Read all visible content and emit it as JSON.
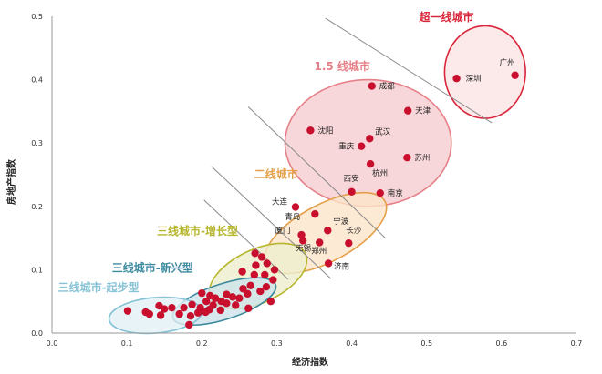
{
  "chart_data": {
    "type": "scatter",
    "xlabel": "经济指数",
    "ylabel": "房地产指数",
    "xlim": [
      0,
      0.7
    ],
    "ylim": [
      0,
      0.5
    ],
    "x_ticks": [
      "0.0",
      "0.1",
      "0.2",
      "0.3",
      "0.4",
      "0.5",
      "0.6",
      "0.7"
    ],
    "y_ticks": [
      "0.0",
      "0.1",
      "0.2",
      "0.3",
      "0.4",
      "0.5"
    ],
    "grid": false,
    "point_color": "#c8102e",
    "labeled_points": [
      {
        "label": "广州",
        "x": 0.618,
        "y": 0.407
      },
      {
        "label": "深圳",
        "x": 0.54,
        "y": 0.402
      },
      {
        "label": "成都",
        "x": 0.427,
        "y": 0.39
      },
      {
        "label": "天津",
        "x": 0.475,
        "y": 0.351
      },
      {
        "label": "沈阳",
        "x": 0.345,
        "y": 0.32
      },
      {
        "label": "武汉",
        "x": 0.424,
        "y": 0.307
      },
      {
        "label": "重庆",
        "x": 0.413,
        "y": 0.295
      },
      {
        "label": "苏州",
        "x": 0.474,
        "y": 0.277
      },
      {
        "label": "杭州",
        "x": 0.425,
        "y": 0.267
      },
      {
        "label": "西安",
        "x": 0.4,
        "y": 0.223
      },
      {
        "label": "南京",
        "x": 0.438,
        "y": 0.221
      },
      {
        "label": "大连",
        "x": 0.325,
        "y": 0.199
      },
      {
        "label": "青岛",
        "x": 0.351,
        "y": 0.188
      },
      {
        "label": "宁波",
        "x": 0.368,
        "y": 0.162
      },
      {
        "label": "厦门",
        "x": 0.333,
        "y": 0.155
      },
      {
        "label": "长沙",
        "x": 0.396,
        "y": 0.142
      },
      {
        "label": "无锡",
        "x": 0.335,
        "y": 0.146
      },
      {
        "label": "郑州",
        "x": 0.357,
        "y": 0.143
      },
      {
        "label": "济南",
        "x": 0.369,
        "y": 0.11
      }
    ],
    "unlabeled_points": [
      [
        0.271,
        0.126
      ],
      [
        0.28,
        0.12
      ],
      [
        0.287,
        0.11
      ],
      [
        0.272,
        0.107
      ],
      [
        0.297,
        0.1
      ],
      [
        0.254,
        0.097
      ],
      [
        0.284,
        0.092
      ],
      [
        0.27,
        0.092
      ],
      [
        0.295,
        0.084
      ],
      [
        0.265,
        0.075
      ],
      [
        0.286,
        0.073
      ],
      [
        0.255,
        0.07
      ],
      [
        0.278,
        0.066
      ],
      [
        0.261,
        0.062
      ],
      [
        0.292,
        0.05
      ],
      [
        0.2,
        0.063
      ],
      [
        0.211,
        0.059
      ],
      [
        0.233,
        0.061
      ],
      [
        0.241,
        0.057
      ],
      [
        0.218,
        0.055
      ],
      [
        0.25,
        0.055
      ],
      [
        0.226,
        0.05
      ],
      [
        0.206,
        0.05
      ],
      [
        0.233,
        0.047
      ],
      [
        0.215,
        0.044
      ],
      [
        0.187,
        0.045
      ],
      [
        0.245,
        0.044
      ],
      [
        0.198,
        0.04
      ],
      [
        0.262,
        0.039
      ],
      [
        0.21,
        0.037
      ],
      [
        0.225,
        0.036
      ],
      [
        0.205,
        0.033
      ],
      [
        0.176,
        0.04
      ],
      [
        0.195,
        0.032
      ],
      [
        0.185,
        0.027
      ],
      [
        0.17,
        0.03
      ],
      [
        0.16,
        0.04
      ],
      [
        0.143,
        0.043
      ],
      [
        0.15,
        0.038
      ],
      [
        0.125,
        0.033
      ],
      [
        0.13,
        0.03
      ],
      [
        0.145,
        0.028
      ],
      [
        0.101,
        0.035
      ],
      [
        0.183,
        0.013
      ]
    ],
    "groups": [
      {
        "name": "超一线城市",
        "color": "#d9263a",
        "fill": "#fbe3e5",
        "cx": 0.578,
        "cy": 0.412,
        "rx": 0.054,
        "ry": 0.073,
        "angle": 0,
        "label_x": 0.49,
        "label_y": 0.493
      },
      {
        "name": "1.5 线城市",
        "color": "#e58089",
        "fill": "#f6cdd1",
        "cx": 0.422,
        "cy": 0.3,
        "rx": 0.111,
        "ry": 0.1,
        "angle": 0,
        "label_x": 0.35,
        "label_y": 0.415
      },
      {
        "name": "二线城市",
        "color": "#e5a04a",
        "fill": "#fbe5c9",
        "cx": 0.365,
        "cy": 0.158,
        "rx": 0.09,
        "ry": 0.045,
        "angle": -28,
        "label_x": 0.27,
        "label_y": 0.245
      },
      {
        "name": "三线城市-增长型",
        "color": "#b7b72e",
        "fill": "#eeeecd",
        "cx": 0.275,
        "cy": 0.09,
        "rx": 0.07,
        "ry": 0.042,
        "angle": -25,
        "label_x": 0.14,
        "label_y": 0.155
      },
      {
        "name": "三线城市-新兴型",
        "color": "#3d8a9e",
        "fill": "#cde4ea",
        "cx": 0.23,
        "cy": 0.05,
        "rx": 0.072,
        "ry": 0.028,
        "angle": -18,
        "label_x": 0.08,
        "label_y": 0.097
      },
      {
        "name": "三线城市-起步型",
        "color": "#86c3d6",
        "fill": "#e2f0f5",
        "cx": 0.138,
        "cy": 0.028,
        "rx": 0.062,
        "ry": 0.028,
        "angle": -5,
        "label_x": 0.008,
        "label_y": 0.066
      }
    ],
    "divider_lines": [
      {
        "x1": 0.365,
        "y1": 0.497,
        "x2": 0.587,
        "y2": 0.332
      },
      {
        "x1": 0.262,
        "y1": 0.357,
        "x2": 0.445,
        "y2": 0.15
      },
      {
        "x1": 0.213,
        "y1": 0.263,
        "x2": 0.372,
        "y2": 0.086
      },
      {
        "x1": 0.203,
        "y1": 0.21,
        "x2": 0.315,
        "y2": 0.085
      }
    ]
  }
}
